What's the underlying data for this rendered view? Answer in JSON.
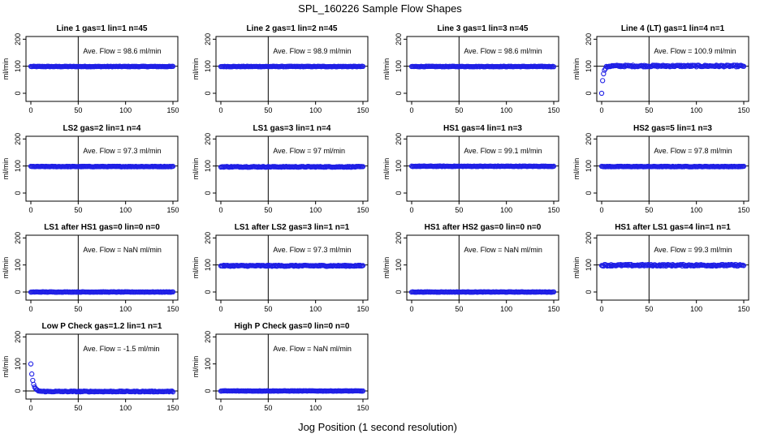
{
  "figure": {
    "title": "SPL_160226  Sample Flow Shapes",
    "xlabel": "Jog Position (1 second resolution)"
  },
  "colors": {
    "points": "#1f1fe6",
    "axis": "#000000",
    "background": "#ffffff"
  },
  "chart_data": [
    {
      "type": "scatter",
      "title": "Line 1 gas=1 lin=1 n=45",
      "ylabel": "ml/min",
      "xlim": [
        0,
        150
      ],
      "ylim": [
        -30,
        210
      ],
      "xticks": [
        0,
        50,
        100,
        150
      ],
      "yticks": [
        0,
        100,
        200
      ],
      "vline_x": 50,
      "hline_y": 100,
      "annotation": "Ave. Flow =  98.6  ml/min",
      "shape": {
        "mode": "flat",
        "level": 99,
        "noise": 1
      }
    },
    {
      "type": "scatter",
      "title": "Line 2 gas=1 lin=2 n=45",
      "ylabel": "ml/min",
      "xlim": [
        0,
        150
      ],
      "ylim": [
        -30,
        210
      ],
      "xticks": [
        0,
        50,
        100,
        150
      ],
      "yticks": [
        0,
        100,
        200
      ],
      "vline_x": 50,
      "hline_y": 100,
      "annotation": "Ave. Flow =  98.9  ml/min",
      "shape": {
        "mode": "flat",
        "level": 99,
        "noise": 1
      }
    },
    {
      "type": "scatter",
      "title": "Line 3 gas=1 lin=3 n=45",
      "ylabel": "ml/min",
      "xlim": [
        0,
        150
      ],
      "ylim": [
        -30,
        210
      ],
      "xticks": [
        0,
        50,
        100,
        150
      ],
      "yticks": [
        0,
        100,
        200
      ],
      "vline_x": 50,
      "hline_y": 100,
      "annotation": "Ave. Flow =  98.6  ml/min",
      "shape": {
        "mode": "flat",
        "level": 99,
        "noise": 1
      }
    },
    {
      "type": "scatter",
      "title": "Line 4 (LT) gas=1 lin=4 n=1",
      "ylabel": "ml/min",
      "xlim": [
        0,
        150
      ],
      "ylim": [
        -30,
        210
      ],
      "xticks": [
        0,
        50,
        100,
        150
      ],
      "yticks": [
        0,
        100,
        200
      ],
      "vline_x": 50,
      "hline_y": 100,
      "annotation": "Ave. Flow =  100.9  ml/min",
      "shape": {
        "mode": "rise",
        "level": 101,
        "start": 0,
        "noise": 3
      }
    },
    {
      "type": "scatter",
      "title": "LS2 gas=2 lin=1 n=4",
      "ylabel": "ml/min",
      "xlim": [
        0,
        150
      ],
      "ylim": [
        -30,
        210
      ],
      "xticks": [
        0,
        50,
        100,
        150
      ],
      "yticks": [
        0,
        100,
        200
      ],
      "vline_x": 50,
      "hline_y": 100,
      "annotation": "Ave. Flow =  97.3  ml/min",
      "shape": {
        "mode": "flat",
        "level": 98,
        "noise": 1
      }
    },
    {
      "type": "scatter",
      "title": "LS1 gas=3 lin=1 n=4",
      "ylabel": "ml/min",
      "xlim": [
        0,
        150
      ],
      "ylim": [
        -30,
        210
      ],
      "xticks": [
        0,
        50,
        100,
        150
      ],
      "yticks": [
        0,
        100,
        200
      ],
      "vline_x": 50,
      "hline_y": 100,
      "annotation": "Ave. Flow =  97  ml/min",
      "shape": {
        "mode": "flat",
        "level": 97,
        "noise": 1.5
      }
    },
    {
      "type": "scatter",
      "title": "HS1 gas=4 lin=1 n=3",
      "ylabel": "ml/min",
      "xlim": [
        0,
        150
      ],
      "ylim": [
        -30,
        210
      ],
      "xticks": [
        0,
        50,
        100,
        150
      ],
      "yticks": [
        0,
        100,
        200
      ],
      "vline_x": 50,
      "hline_y": 100,
      "annotation": "Ave. Flow =  99.1  ml/min",
      "shape": {
        "mode": "flat",
        "level": 99,
        "noise": 1
      }
    },
    {
      "type": "scatter",
      "title": "HS2 gas=5 lin=1 n=3",
      "ylabel": "ml/min",
      "xlim": [
        0,
        150
      ],
      "ylim": [
        -30,
        210
      ],
      "xticks": [
        0,
        50,
        100,
        150
      ],
      "yticks": [
        0,
        100,
        200
      ],
      "vline_x": 50,
      "hline_y": 100,
      "annotation": "Ave. Flow =  97.8  ml/min",
      "shape": {
        "mode": "flat",
        "level": 98,
        "noise": 1
      }
    },
    {
      "type": "scatter",
      "title": "LS1 after HS1 gas=0 lin=0 n=0",
      "ylabel": "ml/min",
      "xlim": [
        0,
        150
      ],
      "ylim": [
        -30,
        210
      ],
      "xticks": [
        0,
        50,
        100,
        150
      ],
      "yticks": [
        0,
        100,
        200
      ],
      "vline_x": 50,
      "hline_y": 0,
      "annotation": "Ave. Flow =  NaN  ml/min",
      "shape": {
        "mode": "flat",
        "level": 0,
        "noise": 0.8
      }
    },
    {
      "type": "scatter",
      "title": "LS1 after LS2 gas=3 lin=1 n=1",
      "ylabel": "ml/min",
      "xlim": [
        0,
        150
      ],
      "ylim": [
        -30,
        210
      ],
      "xticks": [
        0,
        50,
        100,
        150
      ],
      "yticks": [
        0,
        100,
        200
      ],
      "vline_x": 50,
      "hline_y": 100,
      "annotation": "Ave. Flow =  97.3  ml/min",
      "shape": {
        "mode": "flat",
        "level": 97,
        "noise": 2
      }
    },
    {
      "type": "scatter",
      "title": "HS1 after HS2 gas=0 lin=0 n=0",
      "ylabel": "ml/min",
      "xlim": [
        0,
        150
      ],
      "ylim": [
        -30,
        210
      ],
      "xticks": [
        0,
        50,
        100,
        150
      ],
      "yticks": [
        0,
        100,
        200
      ],
      "vline_x": 50,
      "hline_y": 0,
      "annotation": "Ave. Flow =  NaN  ml/min",
      "shape": {
        "mode": "flat",
        "level": 0,
        "noise": 0.8
      }
    },
    {
      "type": "scatter",
      "title": "HS1 after LS1 gas=4 lin=1 n=1",
      "ylabel": "ml/min",
      "xlim": [
        0,
        150
      ],
      "ylim": [
        -30,
        210
      ],
      "xticks": [
        0,
        50,
        100,
        150
      ],
      "yticks": [
        0,
        100,
        200
      ],
      "vline_x": 50,
      "hline_y": 100,
      "annotation": "Ave. Flow =  99.3  ml/min",
      "shape": {
        "mode": "flat",
        "level": 99,
        "noise": 3
      }
    },
    {
      "type": "scatter",
      "title": "Low P Check gas=1.2 lin=1 n=1",
      "ylabel": "ml/min",
      "xlim": [
        0,
        150
      ],
      "ylim": [
        -30,
        210
      ],
      "xticks": [
        0,
        50,
        100,
        150
      ],
      "yticks": [
        0,
        100,
        200
      ],
      "vline_x": 50,
      "hline_y": 0,
      "annotation": "Ave. Flow =  -1.5  ml/min",
      "shape": {
        "mode": "decay",
        "level": -2,
        "start": 100,
        "noise": 1.5
      }
    },
    {
      "type": "scatter",
      "title": "High P Check gas=0 lin=0 n=0",
      "ylabel": "ml/min",
      "xlim": [
        0,
        150
      ],
      "ylim": [
        -30,
        210
      ],
      "xticks": [
        0,
        50,
        100,
        150
      ],
      "yticks": [
        0,
        100,
        200
      ],
      "vline_x": 50,
      "hline_y": 0,
      "annotation": "Ave. Flow =  NaN  ml/min",
      "shape": {
        "mode": "flat",
        "level": 0,
        "noise": 0.8
      }
    }
  ]
}
